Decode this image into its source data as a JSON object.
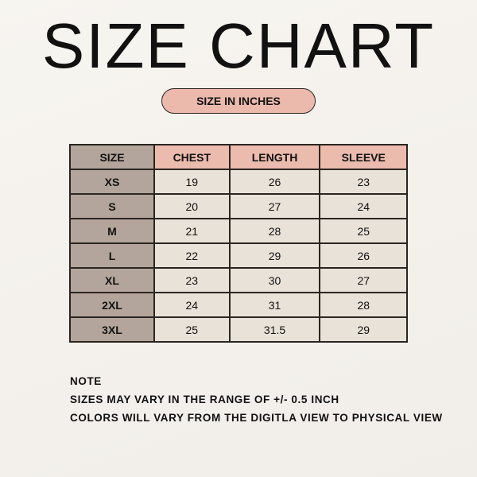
{
  "title": "SIZE CHART",
  "unit_badge": "SIZE IN INCHES",
  "colors": {
    "header": "#ebbbae",
    "size_column": "#b3a59b",
    "cell": "#e8e2d8",
    "border": "#2b2522"
  },
  "table": {
    "headers": [
      "SIZE",
      "CHEST",
      "LENGTH",
      "SLEEVE"
    ],
    "rows": [
      [
        "XS",
        "19",
        "26",
        "23"
      ],
      [
        "S",
        "20",
        "27",
        "24"
      ],
      [
        "M",
        "21",
        "28",
        "25"
      ],
      [
        "L",
        "22",
        "29",
        "26"
      ],
      [
        "XL",
        "23",
        "30",
        "27"
      ],
      [
        "2XL",
        "24",
        "31",
        "28"
      ],
      [
        "3XL",
        "25",
        "31.5",
        "29"
      ]
    ]
  },
  "notes": [
    "NOTE",
    "SIZES MAY VARY  IN THE RANGE OF +/- 0.5 INCH",
    "COLORS WILL VARY FROM THE DIGITLA VIEW TO PHYSICAL VIEW"
  ]
}
